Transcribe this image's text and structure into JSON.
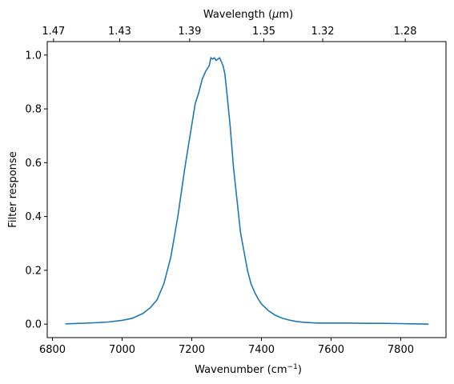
{
  "chart_data": {
    "type": "line",
    "xlabel": "Wavenumber (cm",
    "xlabel_sup": "−1",
    "xlabel_suffix": ")",
    "ylabel": "Filter response",
    "top_xlabel_pre": "Wavelength (",
    "top_xlabel_mu": "μ",
    "top_xlabel_post": "m)",
    "xlim": [
      6785,
      7930
    ],
    "ylim": [
      -0.05,
      1.05
    ],
    "x_ticks": [
      6800,
      7000,
      7200,
      7400,
      7600,
      7800
    ],
    "y_ticks": [
      0.0,
      0.2,
      0.4,
      0.6,
      0.8,
      1.0
    ],
    "y_tick_labels": [
      "0.0",
      "0.2",
      "0.4",
      "0.6",
      "0.8",
      "1.0"
    ],
    "top_ticks": [
      {
        "label": "1.47",
        "wavenumber": 6803
      },
      {
        "label": "1.43",
        "wavenumber": 6993
      },
      {
        "label": "1.39",
        "wavenumber": 7194
      },
      {
        "label": "1.35",
        "wavenumber": 7407
      },
      {
        "label": "1.32",
        "wavenumber": 7576
      },
      {
        "label": "1.28",
        "wavenumber": 7813
      }
    ],
    "line_color": "#1f77b4",
    "grid": false,
    "series": [
      {
        "x": [
          6837,
          6880,
          6920,
          6960,
          7000,
          7030,
          7060,
          7080,
          7100,
          7120,
          7140,
          7160,
          7180,
          7190,
          7200,
          7210,
          7220,
          7230,
          7240,
          7250,
          7255,
          7260,
          7265,
          7270,
          7275,
          7280,
          7285,
          7290,
          7295,
          7300,
          7310,
          7320,
          7330,
          7340,
          7350,
          7360,
          7370,
          7380,
          7390,
          7400,
          7420,
          7440,
          7460,
          7480,
          7500,
          7520,
          7560,
          7600,
          7650,
          7700,
          7750,
          7800,
          7840,
          7880
        ],
        "y": [
          0.001,
          0.003,
          0.005,
          0.008,
          0.014,
          0.022,
          0.04,
          0.06,
          0.09,
          0.15,
          0.25,
          0.4,
          0.58,
          0.66,
          0.74,
          0.82,
          0.86,
          0.91,
          0.94,
          0.96,
          0.99,
          0.985,
          0.99,
          0.98,
          0.985,
          0.99,
          0.975,
          0.96,
          0.93,
          0.87,
          0.74,
          0.58,
          0.46,
          0.34,
          0.27,
          0.2,
          0.15,
          0.12,
          0.095,
          0.075,
          0.05,
          0.033,
          0.022,
          0.015,
          0.01,
          0.007,
          0.004,
          0.004,
          0.004,
          0.003,
          0.003,
          0.002,
          0.001,
          0.0
        ]
      }
    ]
  }
}
